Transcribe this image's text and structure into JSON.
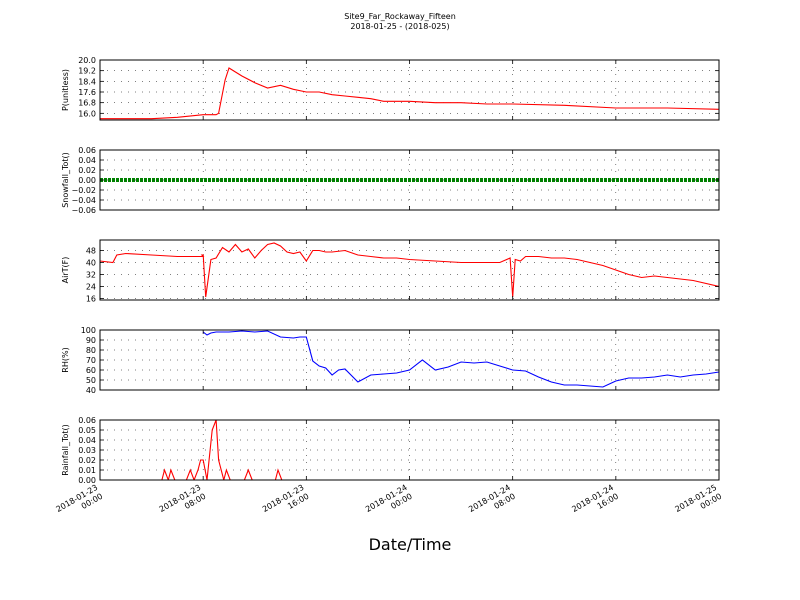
{
  "figure": {
    "title_line1": "Site9_Far_Rockaway_Fifteen",
    "title_line2": "2018-01-25 - (2018-025)",
    "xlabel": "Date/Time",
    "x_ticks": [
      {
        "line1": "2018-01-23",
        "line2": "00:00"
      },
      {
        "line1": "2018-01-23",
        "line2": "08:00"
      },
      {
        "line1": "2018-01-23",
        "line2": "16:00"
      },
      {
        "line1": "2018-01-24",
        "line2": "00:00"
      },
      {
        "line1": "2018-01-24",
        "line2": "08:00"
      },
      {
        "line1": "2018-01-24",
        "line2": "16:00"
      },
      {
        "line1": "2018-01-25",
        "line2": "00:00"
      }
    ]
  },
  "chart_data": [
    {
      "type": "line",
      "ylabel": "P(unitless)",
      "ylim": [
        15.5,
        20.0
      ],
      "yticks": [
        "16.0",
        "16.8",
        "17.6",
        "18.4",
        "19.2",
        "20.0"
      ],
      "ytick_values": [
        16.0,
        16.8,
        17.6,
        18.4,
        19.2,
        20.0
      ],
      "grid": true,
      "series": [
        {
          "color": "#ff0000",
          "x_hours": [
            0,
            2,
            4,
            6,
            8,
            9,
            9.2,
            9.7,
            10,
            11,
            12,
            13,
            14,
            15,
            16,
            17,
            18,
            19,
            20,
            21,
            22,
            24,
            26,
            28,
            30,
            32,
            36,
            40,
            44,
            48
          ],
          "values": [
            15.6,
            15.6,
            15.6,
            15.7,
            15.9,
            15.9,
            16.0,
            18.5,
            19.4,
            18.8,
            18.3,
            17.9,
            18.1,
            17.8,
            17.6,
            17.6,
            17.4,
            17.3,
            17.2,
            17.1,
            16.9,
            16.9,
            16.8,
            16.8,
            16.7,
            16.7,
            16.6,
            16.4,
            16.4,
            16.3
          ]
        }
      ]
    },
    {
      "type": "line",
      "ylabel": "Snowfall_Tot()",
      "ylim": [
        -0.06,
        0.06
      ],
      "yticks": [
        "−0.06",
        "−0.04",
        "−0.02",
        "0.00",
        "0.02",
        "0.04",
        "0.06"
      ],
      "ytick_values": [
        -0.06,
        -0.04,
        -0.02,
        0.0,
        0.02,
        0.04,
        0.06
      ],
      "grid": true,
      "series": [
        {
          "color": "#008000",
          "x_hours": [
            0,
            48
          ],
          "values": [
            0.0,
            0.0
          ]
        }
      ]
    },
    {
      "type": "line",
      "ylabel": "AirT(F)",
      "ylim": [
        15,
        55
      ],
      "yticks": [
        "16",
        "24",
        "32",
        "40",
        "48"
      ],
      "ytick_values": [
        16,
        24,
        32,
        40,
        48
      ],
      "grid": true,
      "series": [
        {
          "color": "#ff0000",
          "x_hours": [
            0,
            1,
            1.3,
            2,
            4,
            6,
            8,
            7.9,
            8,
            8.2,
            8.6,
            9,
            9.5,
            10,
            10.5,
            11,
            11.5,
            12,
            12.5,
            13,
            13.5,
            14,
            14.5,
            15,
            15.5,
            16,
            16.5,
            17,
            17.5,
            18,
            19,
            20,
            21,
            22,
            23,
            24,
            26,
            28,
            30,
            31,
            31.8,
            32,
            32.2,
            32.6,
            33,
            34,
            35,
            36,
            37,
            38,
            39,
            40,
            41,
            41.5,
            42,
            43,
            44,
            46,
            48
          ],
          "values": [
            41,
            40,
            45,
            46,
            45,
            44,
            44,
            45,
            45,
            17,
            42,
            43,
            50,
            47,
            52,
            47,
            49,
            43,
            48,
            52,
            53,
            51,
            47,
            46,
            47,
            41,
            48,
            48,
            47,
            47,
            48,
            45,
            44,
            43,
            43,
            42,
            41,
            40,
            40,
            40,
            43,
            17,
            42,
            41,
            44,
            44,
            43,
            43,
            42,
            40,
            38,
            35,
            32,
            31,
            30,
            31,
            30,
            28,
            24
          ]
        }
      ]
    },
    {
      "type": "line",
      "ylabel": "RH(%)",
      "ylim": [
        40,
        100
      ],
      "yticks": [
        "40",
        "50",
        "60",
        "70",
        "80",
        "90",
        "100"
      ],
      "ytick_values": [
        40,
        50,
        60,
        70,
        80,
        90,
        100
      ],
      "grid": true,
      "series": [
        {
          "color": "#0000ff",
          "x_hours": [
            8,
            8.3,
            8.6,
            9,
            10,
            11,
            12,
            13,
            14,
            15,
            15.5,
            16,
            16.5,
            17,
            17.5,
            18,
            18.5,
            19,
            20,
            21,
            22,
            23,
            24,
            25,
            26,
            27,
            28,
            29,
            30,
            31,
            32,
            33,
            34,
            35,
            36,
            37,
            38,
            39,
            40,
            41,
            42,
            43,
            44,
            45,
            46,
            47,
            48
          ],
          "values": [
            98,
            95,
            97,
            98,
            98,
            99,
            98,
            99,
            93,
            92,
            93,
            93,
            69,
            64,
            62,
            55,
            60,
            61,
            48,
            55,
            56,
            57,
            60,
            70,
            60,
            63,
            68,
            67,
            68,
            64,
            60,
            59,
            53,
            48,
            45,
            45,
            44,
            43,
            49,
            52,
            52,
            53,
            55,
            53,
            55,
            56,
            58
          ]
        }
      ]
    },
    {
      "type": "line",
      "ylabel": "Rainfall_Tot()",
      "ylim": [
        0.0,
        0.06
      ],
      "yticks": [
        "0.00",
        "0.01",
        "0.02",
        "0.03",
        "0.04",
        "0.05",
        "0.06"
      ],
      "ytick_values": [
        0.0,
        0.01,
        0.02,
        0.03,
        0.04,
        0.05,
        0.06
      ],
      "grid": true,
      "series": [
        {
          "color": "#ff0000",
          "x_hours": [
            0,
            4.8,
            5.0,
            5.3,
            5.5,
            5.8,
            6.7,
            7.0,
            7.3,
            7.6,
            7.8,
            8.0,
            8.3,
            8.7,
            9.0,
            9.2,
            9.6,
            9.8,
            10.1,
            11.2,
            11.5,
            11.8,
            13.6,
            13.8,
            14.1,
            48
          ],
          "values": [
            0,
            0,
            0.01,
            0,
            0.01,
            0,
            0,
            0.01,
            0,
            0.01,
            0.02,
            0.02,
            0,
            0.05,
            0.06,
            0.02,
            0,
            0.01,
            0,
            0,
            0.01,
            0,
            0,
            0.01,
            0,
            0
          ]
        }
      ]
    }
  ]
}
